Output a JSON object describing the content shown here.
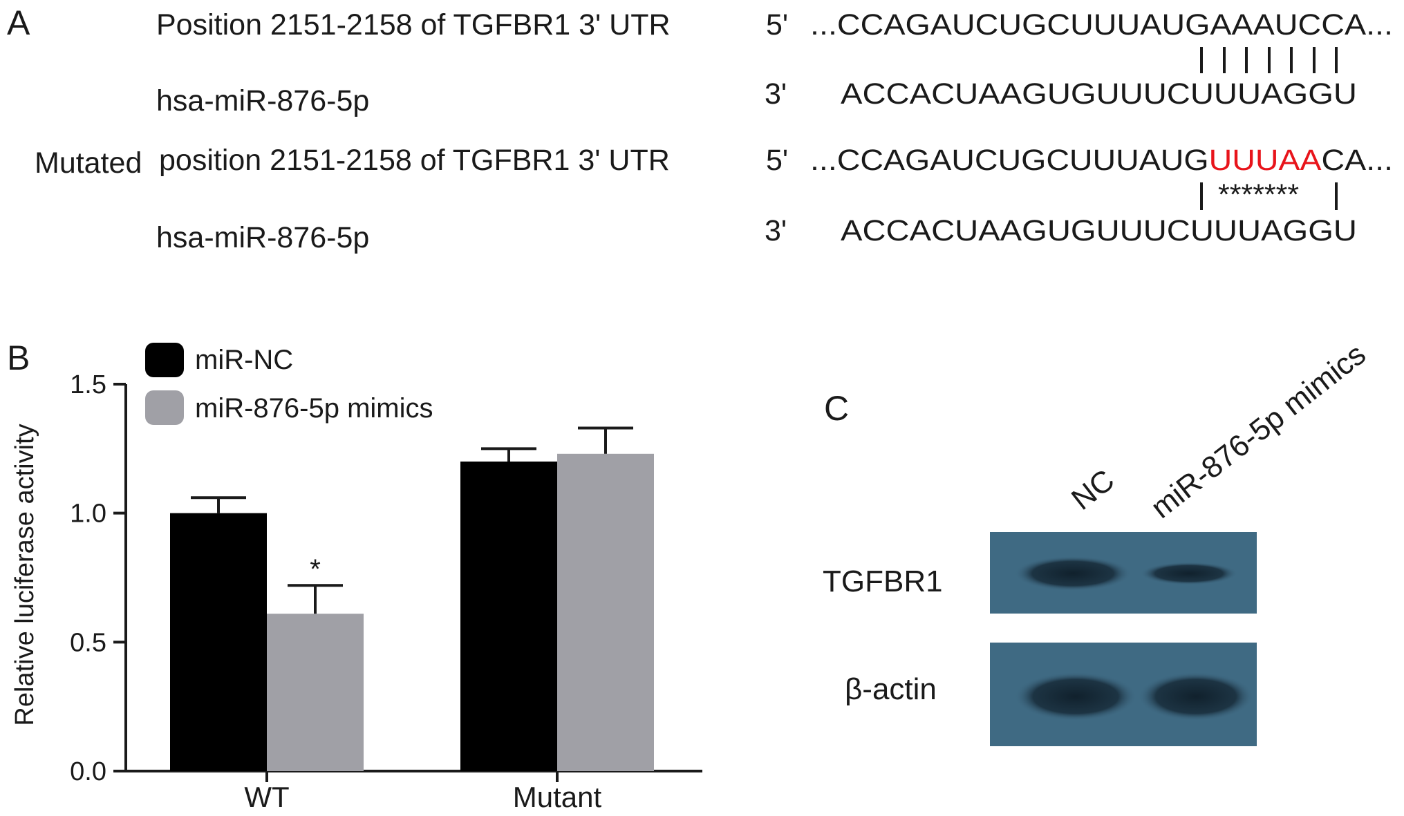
{
  "panel_a": {
    "letter": "A",
    "rows": [
      {
        "label": "Position 2151-2158 of TGFBR1 3' UTR",
        "end": "5'",
        "seq": "...CCAGAUCUGCUUUAUGAAAUCCA...",
        "prefix": "",
        "highlight": "",
        "suffix": ""
      },
      {
        "label": "hsa-miR-876-5p",
        "end": "3'",
        "seq": "ACCACUAAGUGUUUCUUUAGGU",
        "prefix": "",
        "highlight": "",
        "suffix": ""
      },
      {
        "label": "Mutated",
        "label2": "position 2151-2158 of TGFBR1 3' UTR",
        "end": "5'",
        "seq": "",
        "prefix": "...CCAGAUCUGCUUUAUG",
        "highlight": "UUUAA",
        "suffix": "CA..."
      },
      {
        "label": "hsa-miR-876-5p",
        "end": "3'",
        "seq": "ACCACUAAGUGUUUCUUUAGGU",
        "prefix": "",
        "highlight": "",
        "suffix": ""
      }
    ],
    "mismatch_marks": "*******"
  },
  "panel_b": {
    "letter": "B",
    "chart_data": {
      "type": "bar",
      "categories": [
        "WT",
        "Mutant"
      ],
      "series": [
        {
          "name": "miR-NC",
          "color": "#000000",
          "values": [
            1.0,
            1.2
          ],
          "errors": [
            0.06,
            0.05
          ]
        },
        {
          "name": "miR-876-5p mimics",
          "color": "#a0a0a6",
          "values": [
            0.61,
            1.23
          ],
          "errors": [
            0.11,
            0.1
          ]
        }
      ],
      "ylabel": "Relative luciferase activity",
      "ylim": [
        0,
        1.5
      ],
      "yticks": [
        "0.0",
        "0.5",
        "1.0",
        "1.5"
      ],
      "annotations": [
        {
          "category": "WT",
          "series": "miR-876-5p mimics",
          "text": "*"
        }
      ],
      "legend": "top-left"
    }
  },
  "panel_c": {
    "letter": "C",
    "lanes": [
      "NC",
      "miR-876-5p mimics"
    ],
    "blots": [
      {
        "label": "TGFBR1",
        "band_intensity": [
          1.0,
          0.55
        ]
      },
      {
        "label": "β-actin",
        "band_intensity": [
          1.0,
          1.0
        ]
      }
    ]
  }
}
